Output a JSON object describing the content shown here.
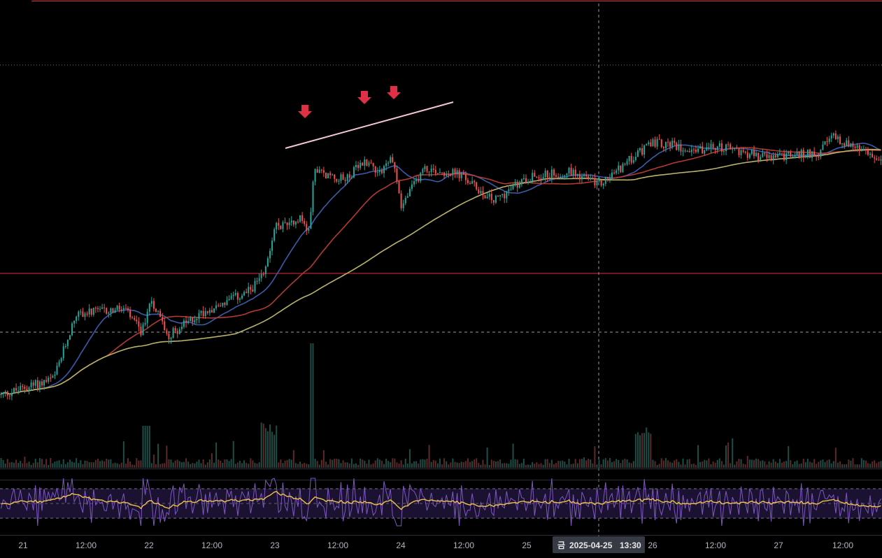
{
  "chart_data": {
    "type": "candlestick",
    "timezone_label_lang": "ko",
    "x_axis": {
      "ticks": [
        "21",
        "12:00",
        "22",
        "12:00",
        "23",
        "12:00",
        "24",
        "12:00",
        "25",
        "26",
        "12:00",
        "27",
        "12:00"
      ]
    },
    "crosshair": {
      "label_day": "금",
      "label_date": "2025-04-25",
      "label_time": "13:30"
    },
    "price_series": {
      "name": "",
      "description_points": [
        {
          "t": 0.0,
          "price": 0.1
        },
        {
          "t": 0.06,
          "price": 0.16
        },
        {
          "t": 0.085,
          "price": 0.4
        },
        {
          "t": 0.14,
          "price": 0.42
        },
        {
          "t": 0.16,
          "price": 0.33
        },
        {
          "t": 0.17,
          "price": 0.46
        },
        {
          "t": 0.19,
          "price": 0.32
        },
        {
          "t": 0.23,
          "price": 0.41
        },
        {
          "t": 0.28,
          "price": 0.48
        },
        {
          "t": 0.3,
          "price": 0.55
        },
        {
          "t": 0.31,
          "price": 0.72
        },
        {
          "t": 0.34,
          "price": 0.76
        },
        {
          "t": 0.35,
          "price": 0.7
        },
        {
          "t": 0.355,
          "price": 0.93
        },
        {
          "t": 0.39,
          "price": 0.9
        },
        {
          "t": 0.415,
          "price": 0.97
        },
        {
          "t": 0.43,
          "price": 0.93
        },
        {
          "t": 0.445,
          "price": 0.98
        },
        {
          "t": 0.455,
          "price": 0.8
        },
        {
          "t": 0.48,
          "price": 0.94
        },
        {
          "t": 0.52,
          "price": 0.92
        },
        {
          "t": 0.56,
          "price": 0.82
        },
        {
          "t": 0.6,
          "price": 0.91
        },
        {
          "t": 0.65,
          "price": 0.93
        },
        {
          "t": 0.68,
          "price": 0.88
        },
        {
          "t": 0.74,
          "price": 1.04
        },
        {
          "t": 0.79,
          "price": 1.01
        },
        {
          "t": 0.82,
          "price": 1.02
        },
        {
          "t": 0.87,
          "price": 0.98
        },
        {
          "t": 0.93,
          "price": 1.0
        },
        {
          "t": 0.945,
          "price": 1.06
        },
        {
          "t": 1.0,
          "price": 0.97
        }
      ]
    },
    "overlays": {
      "horizontal_lines": [
        {
          "name": "top-level",
          "color": "#e8293b",
          "style": "solid"
        },
        {
          "name": "mid-level",
          "color": "#e8293b",
          "style": "solid"
        },
        {
          "name": "dotted-level",
          "color": "#787b86",
          "style": "dotted"
        },
        {
          "name": "dashed-level",
          "color": "#9598a1",
          "style": "dashed"
        }
      ],
      "moving_averages": [
        {
          "name": "ma-fast",
          "color": "#3a5ca8"
        },
        {
          "name": "ma-mid",
          "color": "#b23a32"
        },
        {
          "name": "ma-slow",
          "color": "#b8b36a"
        }
      ],
      "trendline": {
        "color": "#f4c7d2"
      },
      "markers": {
        "shape": "down-arrow",
        "color": "#e03045",
        "count": 3
      }
    },
    "volume": {
      "description": "histogram under price, spike near day 23",
      "spike_t": 0.353
    },
    "rsi": {
      "line_color": "#7e57c2",
      "signal_color": "#f2c14e",
      "band_color": "#1a1230"
    },
    "colors": {
      "background": "#000000",
      "up_candle": "#26a69a",
      "down_candle": "#ef5350",
      "grid_text": "#b2b5be"
    }
  }
}
